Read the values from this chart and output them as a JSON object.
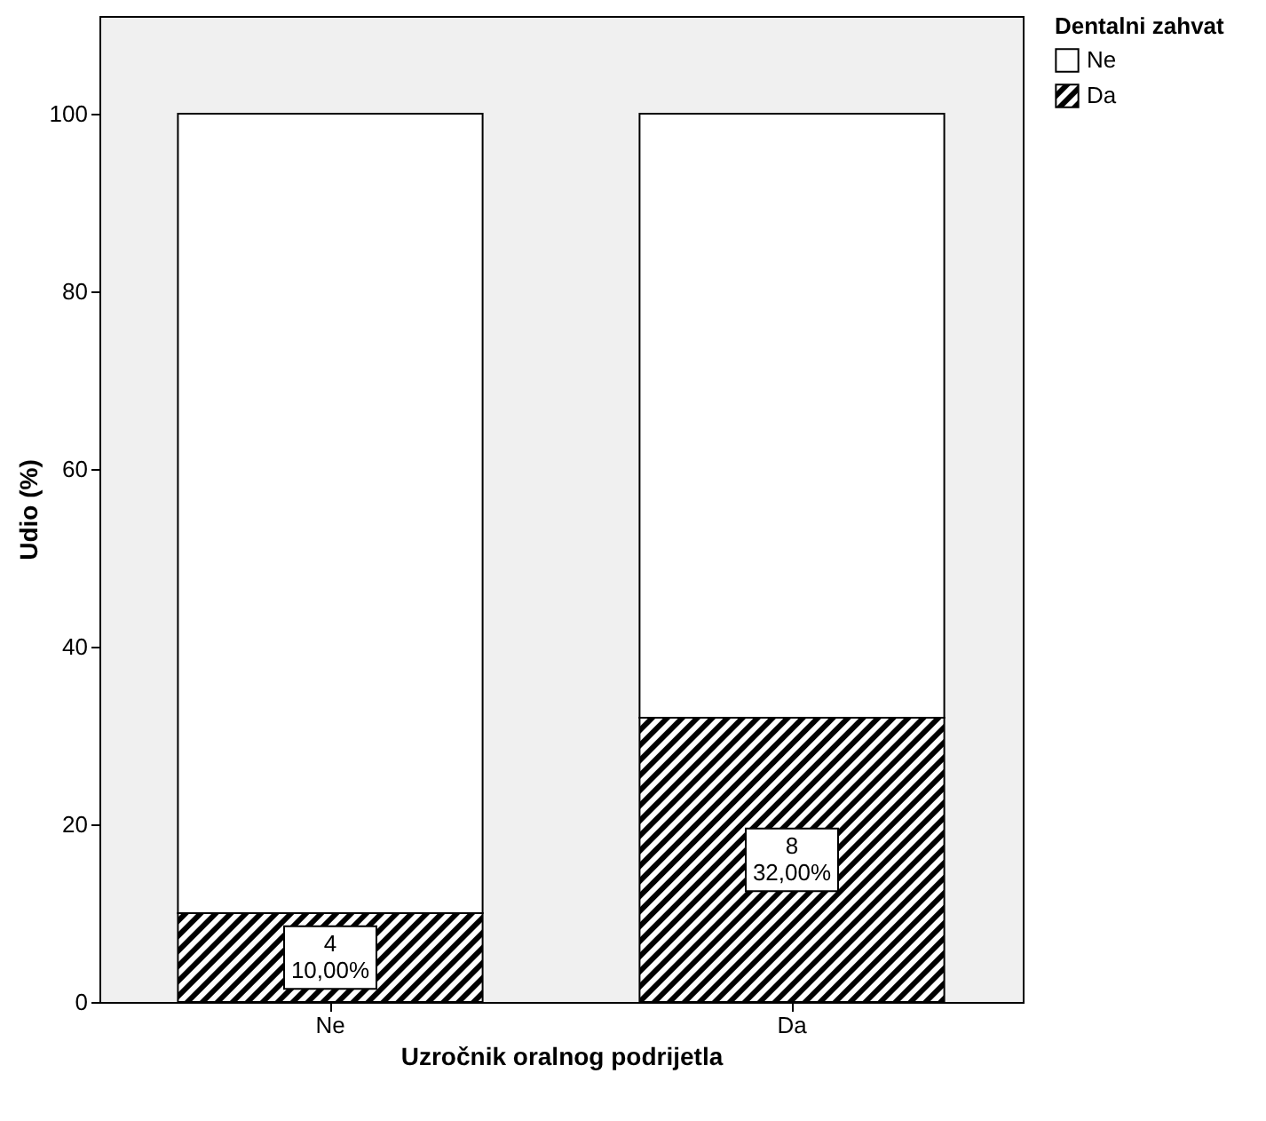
{
  "chart_data": {
    "type": "bar",
    "stacked": true,
    "xlabel": "Uzročnik oralnog podrijetla",
    "ylabel": "Udio (%)",
    "legend_title": "Dentalni zahvat",
    "legend": "top right",
    "grid": false,
    "categories": [
      "Ne",
      "Da"
    ],
    "series": [
      {
        "name": "Da",
        "color": "#000000",
        "values": [
          10,
          32
        ],
        "value_labels": [
          "4\n10,00%",
          "8\n32,00%"
        ]
      },
      {
        "name": "Ne",
        "color": "#ffffff",
        "values": [
          90,
          68
        ]
      }
    ],
    "ylim": [
      0,
      111
    ],
    "yticks": [
      0,
      20,
      40,
      60,
      80,
      100
    ]
  }
}
